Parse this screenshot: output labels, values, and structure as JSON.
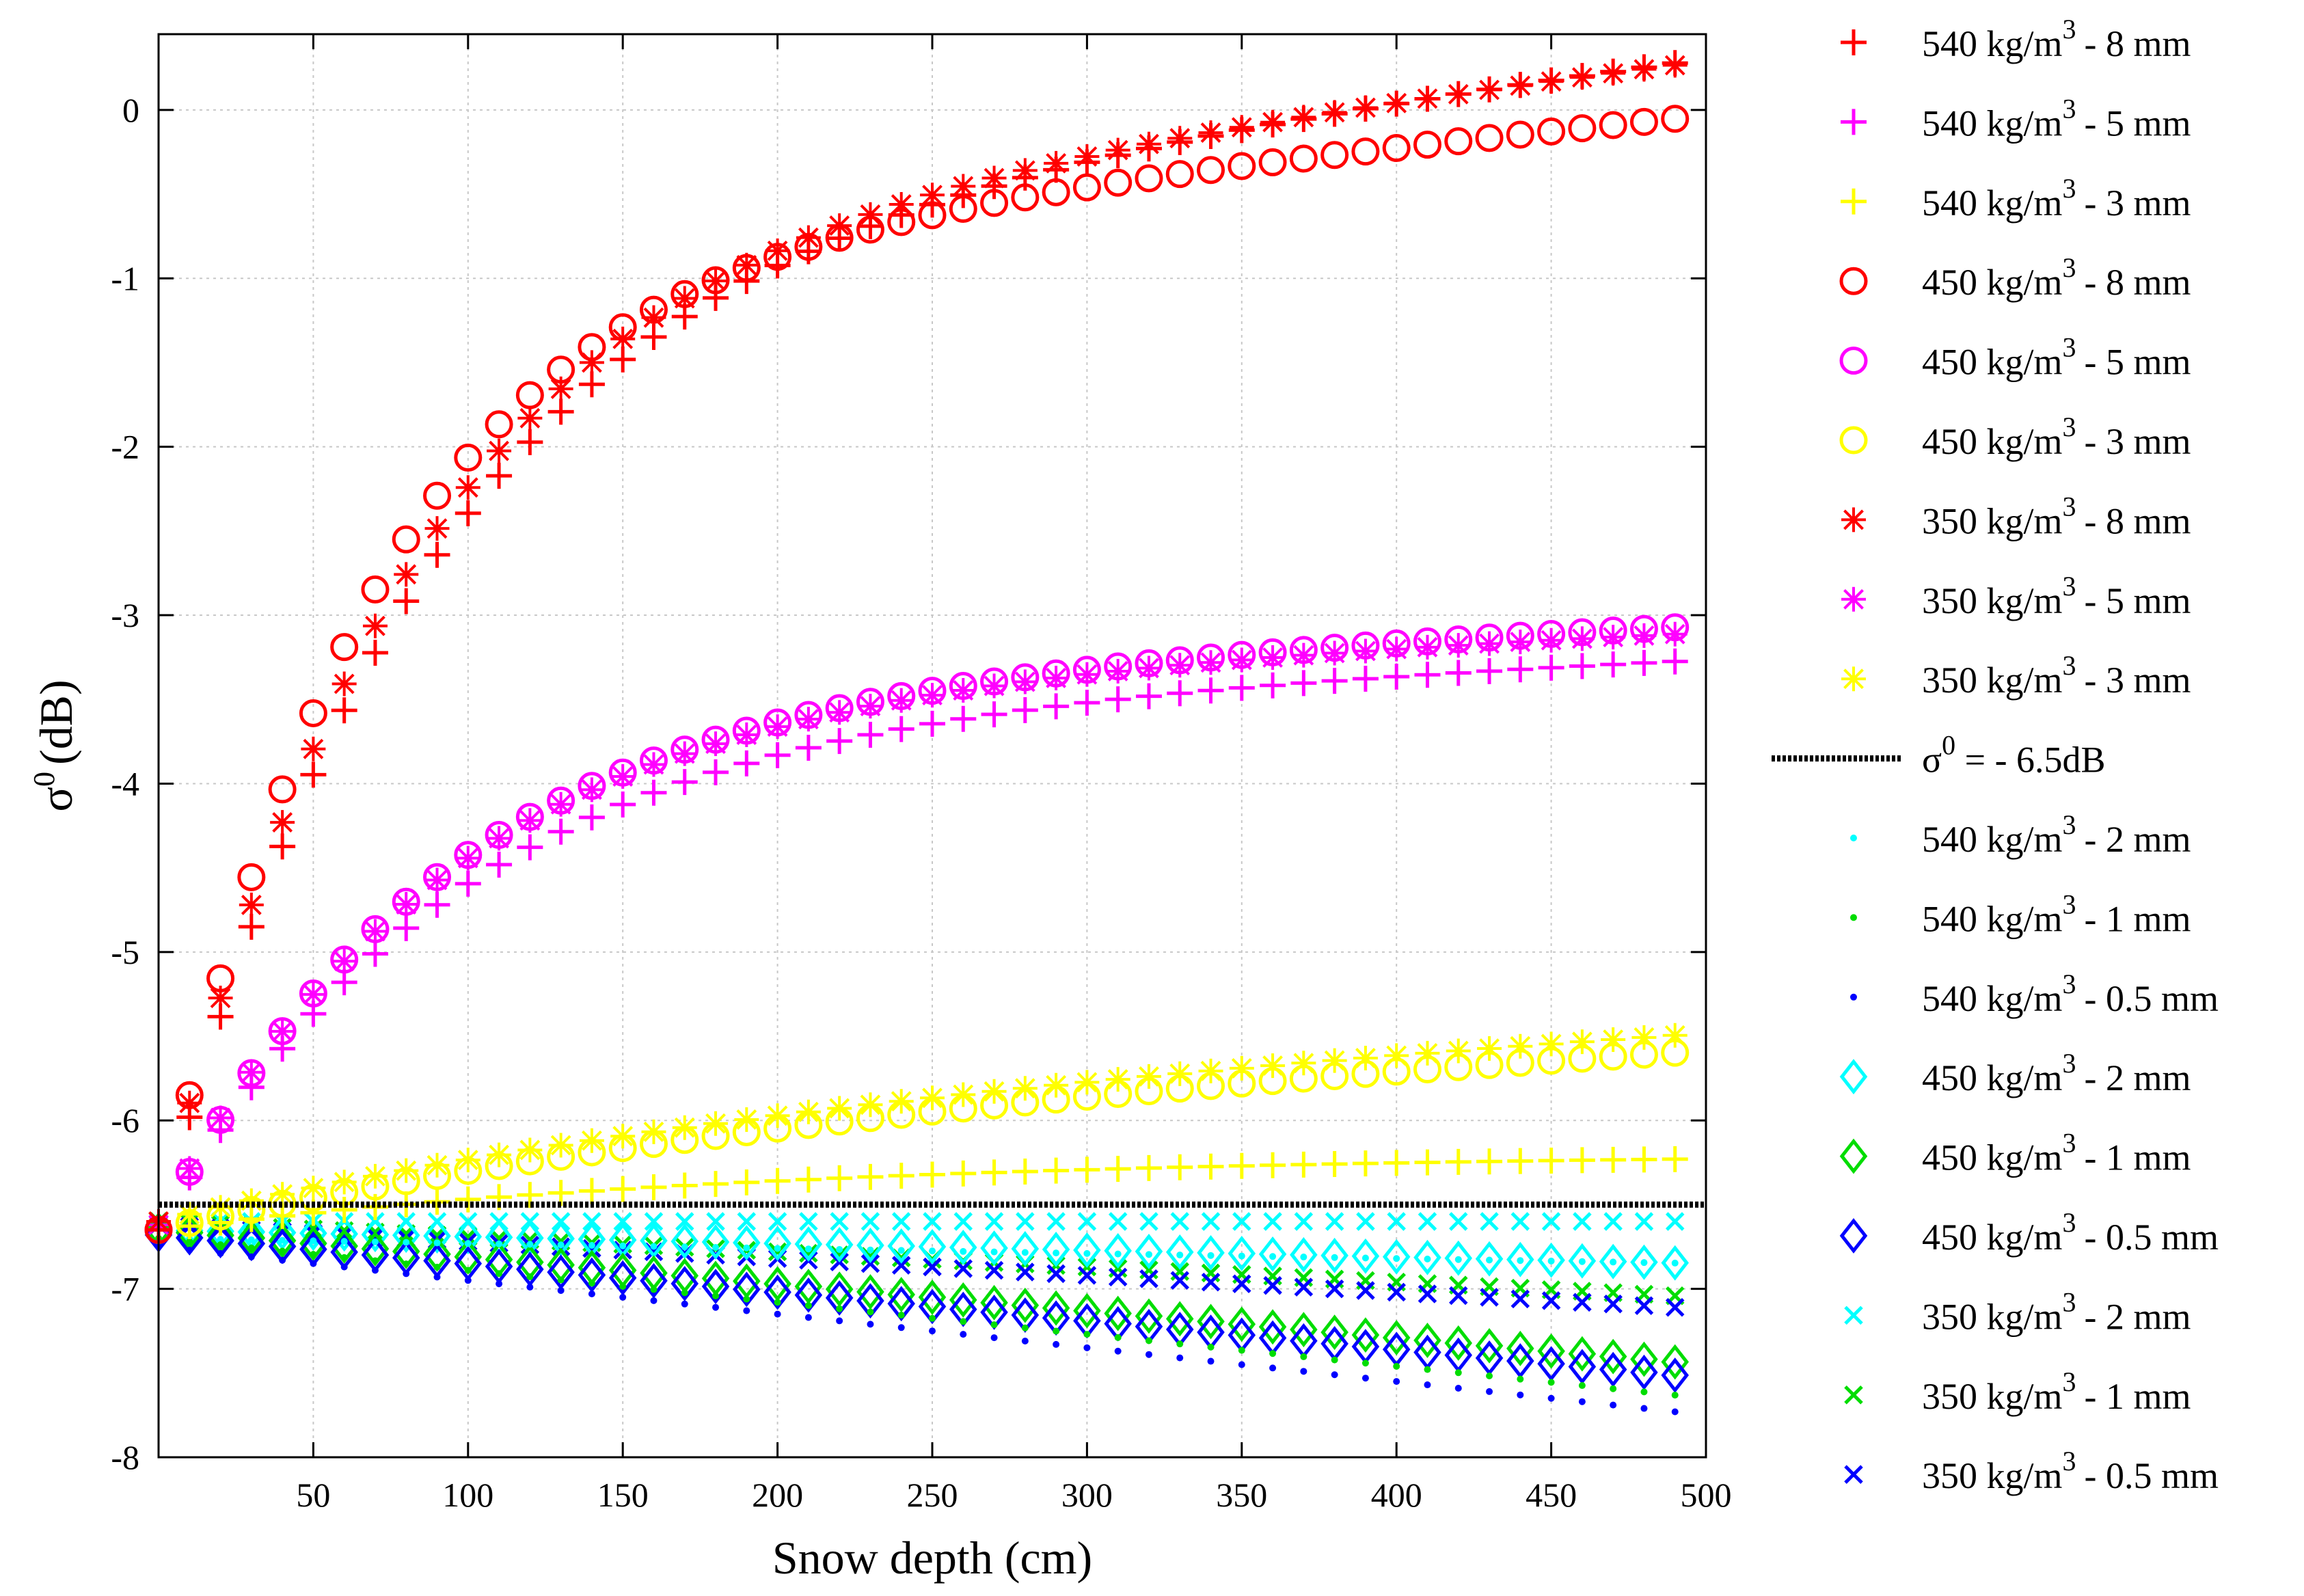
{
  "chart_data": {
    "type": "scatter",
    "title": "",
    "xlabel": "Snow depth (cm)",
    "ylabel": "σ⁰ (dB)",
    "ylabel_parts": {
      "symbol": "σ",
      "superscript": "0",
      "rest": "(dB)"
    },
    "xlim": [
      0,
      500
    ],
    "ylim": [
      -8,
      0.45
    ],
    "xticks": [
      50,
      100,
      150,
      200,
      250,
      300,
      350,
      400,
      450,
      500
    ],
    "xtick_labels": [
      "50",
      "100",
      "150",
      "200",
      "250",
      "300",
      "350",
      "400",
      "450",
      "500"
    ],
    "yticks": [
      0,
      -1,
      -2,
      -3,
      -4,
      -5,
      -6,
      -7,
      -8
    ],
    "ytick_labels": [
      "0",
      "-1",
      "-2",
      "-3",
      "-4",
      "-5",
      "-6",
      "-7",
      "-8"
    ],
    "grid": true,
    "legend_position": "outside-right",
    "x_start": 0,
    "x_step": 10,
    "x_end": 490,
    "threshold_line": {
      "value": -6.5,
      "color": "#000000",
      "label_symbol": "σ",
      "label_sup": "0",
      "label_rest": " = - 6.5dB"
    },
    "series": [
      {
        "name": "540 kg/m3 - 8 mm",
        "density": "540 kg/m",
        "grain": "- 8 mm",
        "marker": "plus",
        "color": "#ff0000",
        "y0": -6.65,
        "a": 5.82,
        "tau": 85,
        "b": 0.0023
      },
      {
        "name": "540 kg/m3 - 5 mm",
        "density": "540 kg/m",
        "grain": "- 5 mm",
        "marker": "plus",
        "color": "#ff00ff",
        "y0": -6.65,
        "a": 3.05,
        "tau": 95,
        "b": 0.0007
      },
      {
        "name": "540 kg/m3 - 3 mm",
        "density": "540 kg/m",
        "grain": "- 3 mm",
        "marker": "plus",
        "color": "#ffff00",
        "y0": -6.65,
        "a": 0.46,
        "tau": 200,
        "b": 0.0
      },
      {
        "name": "450 kg/m3 - 8 mm",
        "density": "450 kg/m",
        "grain": "- 8 mm",
        "marker": "circle",
        "color": "#ff0000",
        "y0": -6.65,
        "a": 5.72,
        "tau": 68,
        "b": 0.0018
      },
      {
        "name": "450 kg/m3 - 5 mm",
        "density": "450 kg/m",
        "grain": "- 5 mm",
        "marker": "circle",
        "color": "#ff00ff",
        "y0": -6.65,
        "a": 3.2,
        "tau": 90,
        "b": 0.0008
      },
      {
        "name": "450 kg/m3 - 3 mm",
        "density": "450 kg/m",
        "grain": "- 3 mm",
        "marker": "circle",
        "color": "#ffff00",
        "y0": -6.65,
        "a": 0.74,
        "tau": 220,
        "b": 0.0008
      },
      {
        "name": "350 kg/m3 - 8 mm",
        "density": "350 kg/m",
        "grain": "- 8 mm",
        "marker": "asterisk",
        "color": "#ff0000",
        "y0": -6.6,
        "a": 5.8,
        "tau": 80,
        "b": 0.0022
      },
      {
        "name": "350 kg/m3 - 5 mm",
        "density": "350 kg/m",
        "grain": "- 5 mm",
        "marker": "asterisk",
        "color": "#ff00ff",
        "y0": -6.62,
        "a": 3.18,
        "tau": 92,
        "b": 0.0007
      },
      {
        "name": "350 kg/m3 - 3 mm",
        "density": "350 kg/m",
        "grain": "- 3 mm",
        "marker": "asterisk",
        "color": "#ffff00",
        "y0": -6.6,
        "a": 0.74,
        "tau": 215,
        "b": 0.0009
      },
      {
        "name": "540 kg/m3 - 2 mm",
        "density": "540 kg/m",
        "grain": "- 2 mm",
        "marker": "dot",
        "color": "#00ffff",
        "y0": -6.7,
        "a": 0.0,
        "tau": 100,
        "b": -0.0003
      },
      {
        "name": "540 kg/m3 - 1 mm",
        "density": "540 kg/m",
        "grain": "- 1 mm",
        "marker": "dot",
        "color": "#00dd00",
        "y0": -6.7,
        "a": 0.0,
        "tau": 100,
        "b": -0.0019
      },
      {
        "name": "540 kg/m3 - 0.5 mm",
        "density": "540 kg/m",
        "grain": "- 0.5 mm",
        "marker": "dot",
        "color": "#0000ff",
        "y0": -6.75,
        "a": 0.0,
        "tau": 100,
        "b": -0.002
      },
      {
        "name": "450 kg/m3 - 2 mm",
        "density": "450 kg/m",
        "grain": "- 2 mm",
        "marker": "diamond",
        "color": "#00ffff",
        "y0": -6.65,
        "a": 0.0,
        "tau": 100,
        "b": -0.0004
      },
      {
        "name": "450 kg/m3 - 1 mm",
        "density": "450 kg/m",
        "grain": "- 1 mm",
        "marker": "diamond",
        "color": "#00dd00",
        "y0": -6.65,
        "a": 0.0,
        "tau": 100,
        "b": -0.0016
      },
      {
        "name": "450 kg/m3 - 0.5 mm",
        "density": "450 kg/m",
        "grain": "- 0.5 mm",
        "marker": "diamond",
        "color": "#0000ff",
        "y0": -6.68,
        "a": 0.0,
        "tau": 100,
        "b": -0.0017
      },
      {
        "name": "350 kg/m3 - 2 mm",
        "density": "350 kg/m",
        "grain": "- 2 mm",
        "marker": "cross",
        "color": "#00ffff",
        "y0": -6.6,
        "a": 0.0,
        "tau": 100,
        "b": 0.0
      },
      {
        "name": "350 kg/m3 - 1 mm",
        "density": "350 kg/m",
        "grain": "- 1 mm",
        "marker": "cross",
        "color": "#00dd00",
        "y0": -6.6,
        "a": 0.0,
        "tau": 100,
        "b": -0.0009
      },
      {
        "name": "350 kg/m3 - 0.5 mm",
        "density": "350 kg/m",
        "grain": "- 0.5 mm",
        "marker": "cross",
        "color": "#0000ff",
        "y0": -6.62,
        "a": 0.0,
        "tau": 100,
        "b": -0.001
      }
    ]
  }
}
